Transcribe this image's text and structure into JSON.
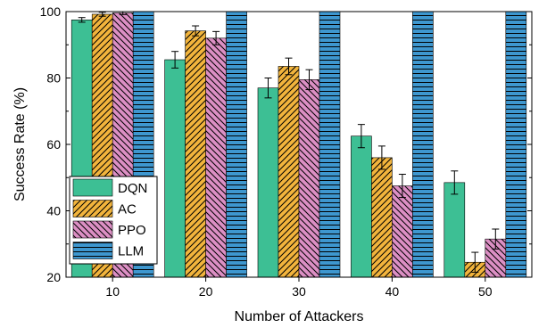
{
  "chart_data": {
    "type": "bar",
    "xlabel": "Number of Attackers",
    "ylabel": "Success Rate (%)",
    "ylim": [
      20,
      100
    ],
    "yticks": [
      20,
      40,
      60,
      80,
      100
    ],
    "categories": [
      "10",
      "20",
      "30",
      "40",
      "50"
    ],
    "legend_position": "bottom-left",
    "grid": false,
    "series": [
      {
        "name": "DQN",
        "color": "#3dbf94",
        "pattern": "solid",
        "values": [
          97.5,
          85.5,
          77.0,
          62.5,
          48.5
        ],
        "errors": [
          0.7,
          2.5,
          3.0,
          3.5,
          3.5
        ]
      },
      {
        "name": "AC",
        "color": "#f2b43c",
        "pattern": "diagonal-forward",
        "values": [
          99.2,
          94.2,
          83.5,
          56.0,
          24.5
        ],
        "errors": [
          0.6,
          1.5,
          2.5,
          3.5,
          3.0
        ]
      },
      {
        "name": "PPO",
        "color": "#dc8fc4",
        "pattern": "diagonal-backward",
        "values": [
          99.6,
          92.0,
          79.5,
          47.5,
          31.5
        ],
        "errors": [
          0.5,
          2.0,
          3.0,
          3.5,
          3.0
        ]
      },
      {
        "name": "LLM",
        "color": "#3e97cf",
        "pattern": "horizontal-lines",
        "values": [
          100,
          100,
          100,
          100,
          100
        ],
        "errors": [
          0,
          0,
          0,
          0,
          0
        ]
      }
    ]
  }
}
